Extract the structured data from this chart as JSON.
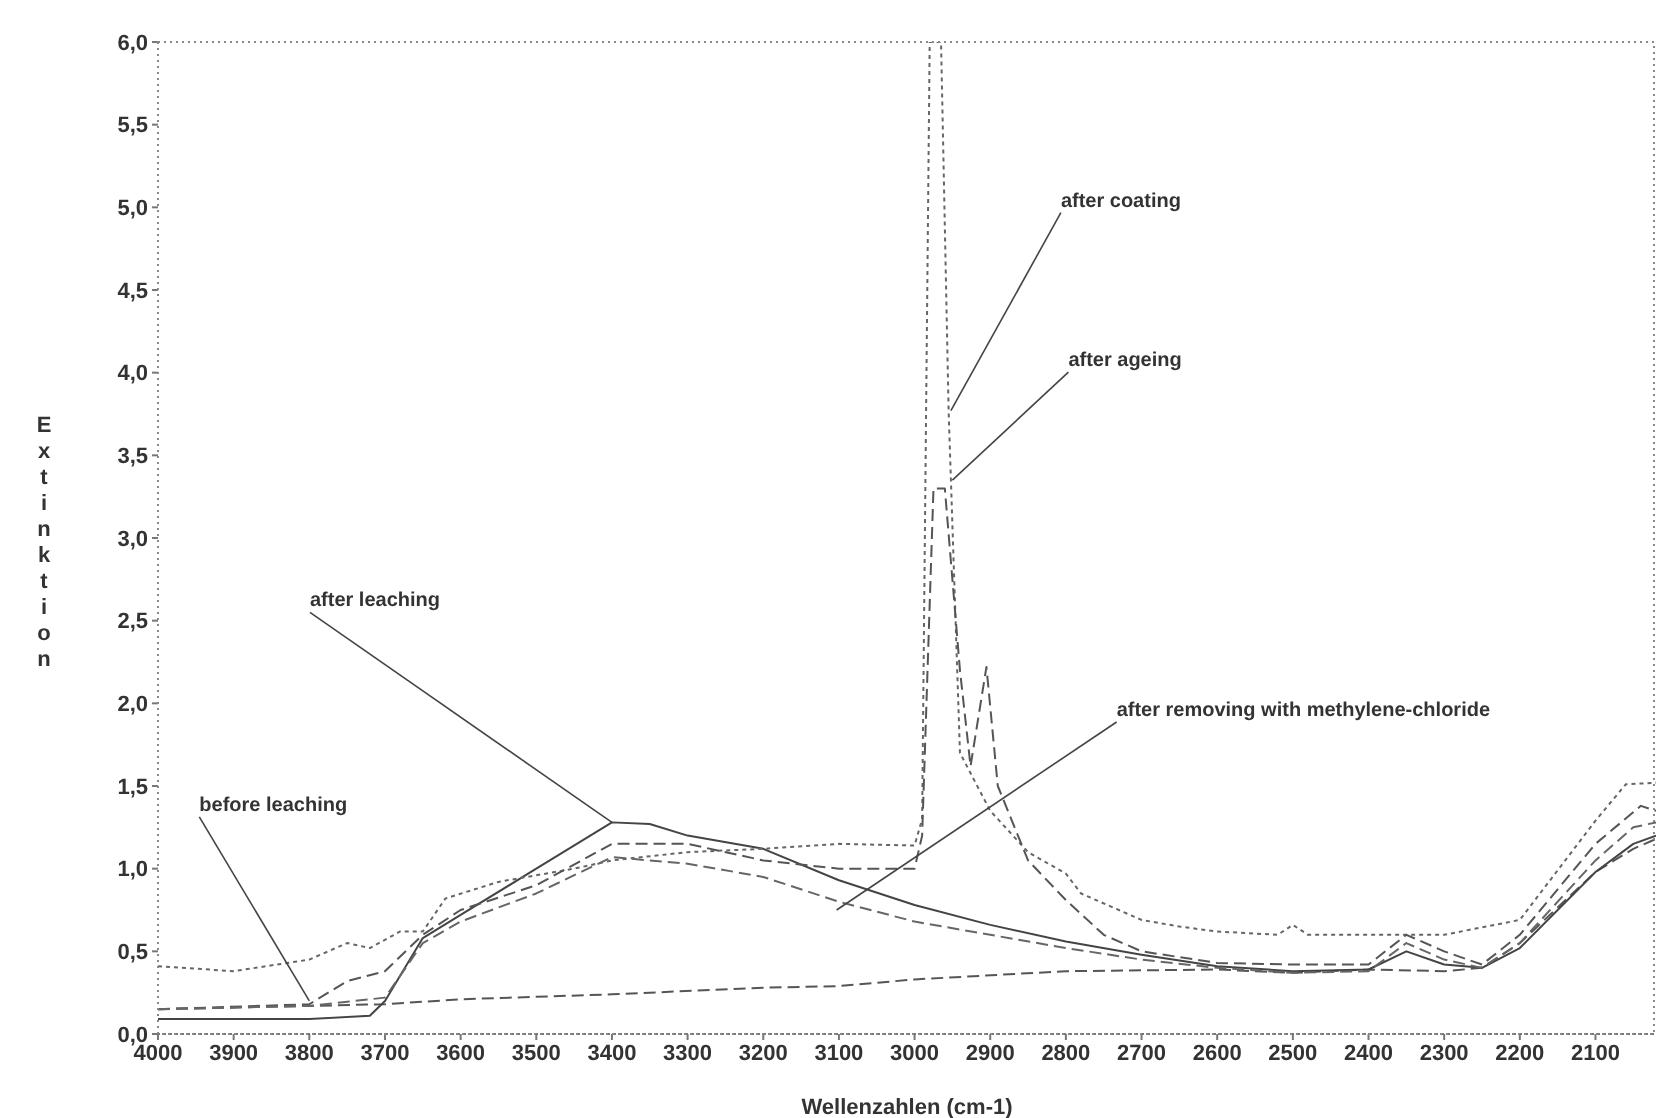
{
  "chart_data": {
    "type": "line",
    "xlabel": "Wellenzahlen (cm-1)",
    "ylabel": "Extinktion",
    "xlim": [
      4000,
      2020
    ],
    "xticks": [
      4000,
      3900,
      3800,
      3700,
      3600,
      3500,
      3400,
      3300,
      3200,
      3100,
      3000,
      2900,
      2800,
      2700,
      2600,
      2500,
      2400,
      2300,
      2200,
      2100
    ],
    "ylim": [
      0,
      6
    ],
    "yticks": [
      {
        "value": 0,
        "label": "0,0"
      },
      {
        "value": 0.5,
        "label": "0,5"
      },
      {
        "value": 1,
        "label": "1,0"
      },
      {
        "value": 1.5,
        "label": "1,5"
      },
      {
        "value": 2,
        "label": "2,0"
      },
      {
        "value": 2.5,
        "label": "2,5"
      },
      {
        "value": 3,
        "label": "3,0"
      },
      {
        "value": 3.5,
        "label": "3,5"
      },
      {
        "value": 4,
        "label": "4,0"
      },
      {
        "value": 4.5,
        "label": "4,5"
      },
      {
        "value": 5,
        "label": "5,0"
      },
      {
        "value": 5.5,
        "label": "5,5"
      },
      {
        "value": 6,
        "label": "6,0"
      }
    ],
    "series": [
      {
        "color": "#555555",
        "line_style": "dashed",
        "x": [
          4000,
          3800,
          3700,
          3600,
          3400,
          3200,
          3100,
          3000,
          2800,
          2600,
          2500,
          2400,
          2300,
          2250,
          2200,
          2100,
          2050,
          2020
        ],
        "values": [
          0.15,
          0.17,
          0.18,
          0.21,
          0.24,
          0.28,
          0.29,
          0.33,
          0.38,
          0.39,
          0.37,
          0.39,
          0.38,
          0.4,
          0.55,
          0.98,
          1.12,
          1.18
        ]
      },
      {
        "color": "#444444",
        "line_style": "solid",
        "x": [
          4000,
          3800,
          3720,
          3700,
          3650,
          3600,
          3500,
          3400,
          3350,
          3300,
          3200,
          3100,
          3000,
          2900,
          2800,
          2700,
          2600,
          2500,
          2400,
          2350,
          2300,
          2250,
          2200,
          2100,
          2050,
          2020
        ],
        "values": [
          0.09,
          0.09,
          0.11,
          0.2,
          0.58,
          0.72,
          1.0,
          1.28,
          1.27,
          1.2,
          1.12,
          0.93,
          0.78,
          0.66,
          0.56,
          0.48,
          0.41,
          0.38,
          0.39,
          0.5,
          0.42,
          0.4,
          0.52,
          0.98,
          1.15,
          1.2
        ]
      },
      {
        "color": "#666666",
        "line_style": "dotted",
        "x": [
          4000,
          3900,
          3800,
          3750,
          3720,
          3680,
          3650,
          3620,
          3550,
          3450,
          3400,
          3300,
          3200,
          3100,
          3000,
          2990,
          2980,
          2965,
          2955,
          2940,
          2900,
          2850,
          2800,
          2780,
          2700,
          2650,
          2600,
          2520,
          2500,
          2480,
          2400,
          2300,
          2200,
          2100,
          2060,
          2020
        ],
        "values": [
          0.41,
          0.38,
          0.45,
          0.55,
          0.52,
          0.62,
          0.62,
          0.82,
          0.92,
          1.0,
          1.05,
          1.1,
          1.12,
          1.15,
          1.14,
          1.3,
          6.0,
          6.0,
          3.77,
          1.7,
          1.35,
          1.1,
          0.97,
          0.85,
          0.69,
          0.65,
          0.62,
          0.6,
          0.66,
          0.6,
          0.6,
          0.6,
          0.69,
          1.29,
          1.51,
          1.52
        ]
      },
      {
        "color": "#555555",
        "line_style": "dashed",
        "x": [
          4000,
          3800,
          3750,
          3700,
          3650,
          3600,
          3500,
          3400,
          3300,
          3200,
          3100,
          3000,
          2990,
          2975,
          2960,
          2940,
          2926,
          2905,
          2890,
          2850,
          2800,
          2750,
          2700,
          2600,
          2500,
          2400,
          2350,
          2300,
          2250,
          2200,
          2100,
          2040,
          2020
        ],
        "values": [
          0.15,
          0.18,
          0.32,
          0.38,
          0.6,
          0.75,
          0.9,
          1.15,
          1.15,
          1.05,
          1.0,
          1.0,
          1.2,
          3.3,
          3.3,
          2.2,
          1.62,
          2.22,
          1.5,
          1.05,
          0.81,
          0.6,
          0.5,
          0.43,
          0.42,
          0.42,
          0.6,
          0.5,
          0.42,
          0.6,
          1.15,
          1.38,
          1.35
        ]
      },
      {
        "color": "#666666",
        "line_style": "dashed",
        "x": [
          4000,
          3800,
          3700,
          3650,
          3600,
          3500,
          3400,
          3300,
          3200,
          3100,
          3000,
          2900,
          2800,
          2700,
          2600,
          2500,
          2400,
          2350,
          2300,
          2250,
          2200,
          2100,
          2050,
          2020
        ],
        "values": [
          0.15,
          0.17,
          0.22,
          0.55,
          0.68,
          0.85,
          1.07,
          1.03,
          0.95,
          0.8,
          0.68,
          0.6,
          0.52,
          0.45,
          0.4,
          0.37,
          0.38,
          0.55,
          0.45,
          0.4,
          0.55,
          1.05,
          1.25,
          1.28
        ]
      }
    ],
    "annotations": [
      {
        "text": "before leaching",
        "x": 3800,
        "y": 0.2
      },
      {
        "text": "after leaching",
        "x": 3400,
        "y": 1.28
      },
      {
        "text": "after coating",
        "x": 2952,
        "y": 3.77
      },
      {
        "text": "after ageing",
        "x": 2950,
        "y": 3.35
      },
      {
        "text": "after removing with methylene-chloride",
        "x": 3103,
        "y": 0.75
      }
    ]
  }
}
